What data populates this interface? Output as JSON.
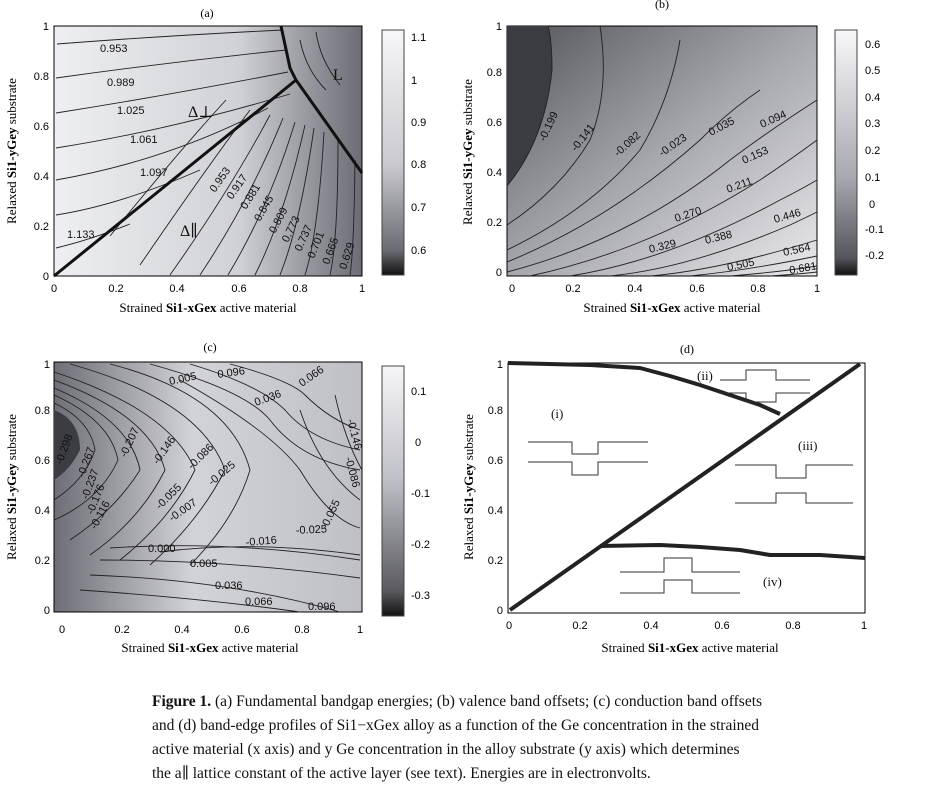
{
  "figure": {
    "panels": [
      {
        "id": "a",
        "label": "(a)",
        "xlabel_prefix": "Strained",
        "xlabel_formula": "Si1-xGex",
        "xlabel_suffix": "active material",
        "ylabel_prefix": "Relaxed",
        "ylabel_formula": "Si1-yGey",
        "ylabel_suffix": "substrate",
        "xticks": [
          "0",
          "0.2",
          "0.4",
          "0.6",
          "0.8",
          "1"
        ],
        "yticks": [
          "0",
          "0.2",
          "0.4",
          "0.6",
          "0.8",
          "1"
        ],
        "colorbar_ticks": [
          "1.1",
          "1",
          "0.9",
          "0.8",
          "0.7",
          "0.6"
        ],
        "colorbar_values": [
          1.1,
          1.0,
          0.9,
          0.8,
          0.7,
          0.6
        ],
        "contour_labels": [
          "0.953",
          "0.989",
          "1.025",
          "1.061",
          "1.097",
          "1.133",
          "0.953",
          "0.917",
          "0.881",
          "0.845",
          "0.809",
          "0.773",
          "0.737",
          "0.701",
          "0.665",
          "0.629"
        ],
        "region_labels": [
          "Δ⊥",
          "Δ∥",
          "L"
        ]
      },
      {
        "id": "b",
        "label": "(b)",
        "xlabel_prefix": "Strained",
        "xlabel_formula": "Si1-xGex",
        "xlabel_suffix": "active material",
        "ylabel_prefix": "Relaxed",
        "ylabel_formula": "Si1-yGey",
        "ylabel_suffix": "substrate",
        "xticks": [
          "0",
          "0.2",
          "0.4",
          "0.6",
          "0.8",
          "1"
        ],
        "yticks": [
          "0",
          "0.2",
          "0.4",
          "0.6",
          "0.8",
          "1"
        ],
        "colorbar_ticks": [
          "0.6",
          "0.5",
          "0.4",
          "0.3",
          "0.2",
          "0.1",
          "0",
          "-0.1",
          "-0.2"
        ],
        "colorbar_values": [
          0.6,
          0.5,
          0.4,
          0.3,
          0.2,
          0.1,
          0,
          -0.1,
          -0.2
        ],
        "contour_labels": [
          "-0.199",
          "-0.141",
          "-0.082",
          "-0.023",
          "0.035",
          "0.094",
          "0.153",
          "0.211",
          "0.270",
          "0.329",
          "0.388",
          "0.446",
          "0.505",
          "0.564",
          "0.681"
        ]
      },
      {
        "id": "c",
        "label": "(c)",
        "xlabel_prefix": "Strained",
        "xlabel_formula": "Si1-xGex",
        "xlabel_suffix": "active material",
        "ylabel_prefix": "Relaxed",
        "ylabel_formula": "Si1-yGey",
        "ylabel_suffix": "substrate",
        "xticks": [
          "0",
          "0.2",
          "0.4",
          "0.6",
          "0.8",
          "1"
        ],
        "yticks": [
          "0",
          "0.2",
          "0.4",
          "0.6",
          "0.8",
          "1"
        ],
        "colorbar_ticks": [
          "0.1",
          "0",
          "-0.1",
          "-0.2",
          "-0.3"
        ],
        "colorbar_values": [
          0.1,
          0,
          -0.1,
          -0.2,
          -0.3
        ],
        "contour_labels": [
          "0.096",
          "0.066",
          "0.005",
          "0.036",
          "-0.298",
          "-0.267",
          "-0.237",
          "-0.207",
          "-0.176",
          "-0.146",
          "-0.116",
          "-0.086",
          "-0.055",
          "-0.025",
          "-0.007",
          "0.000",
          "-0.016",
          "-0.025",
          "-0.055",
          "0.005",
          "0.036",
          "0.066",
          "0.096",
          "-0.146",
          "-0.086"
        ]
      },
      {
        "id": "d",
        "label": "(d)",
        "xlabel_prefix": "Strained",
        "xlabel_formula": "Si1-xGex",
        "xlabel_suffix": "active material",
        "ylabel_prefix": "Relaxed",
        "ylabel_formula": "Si1-yGey",
        "ylabel_suffix": "substrate",
        "xticks": [
          "0",
          "0.2",
          "0.4",
          "0.6",
          "0.8",
          "1"
        ],
        "yticks": [
          "0",
          "0.2",
          "0.4",
          "0.6",
          "0.8",
          "1"
        ],
        "region_labels": [
          "(i)",
          "(ii)",
          "(iii)",
          "(iv)"
        ]
      }
    ],
    "caption": {
      "label": "Figure 1.",
      "lines": [
        "(a) Fundamental bandgap energies; (b) valence band offsets; (c) conduction band offsets",
        "and (d) band-edge profiles of Si1−xGex alloy as a function of the Ge concentration in the strained",
        "active material (x axis) and y Ge concentration in the alloy substrate (y axis) which determines",
        "the a∥ lattice constant of the active layer (see text). Energies are in electronvolts."
      ]
    }
  }
}
